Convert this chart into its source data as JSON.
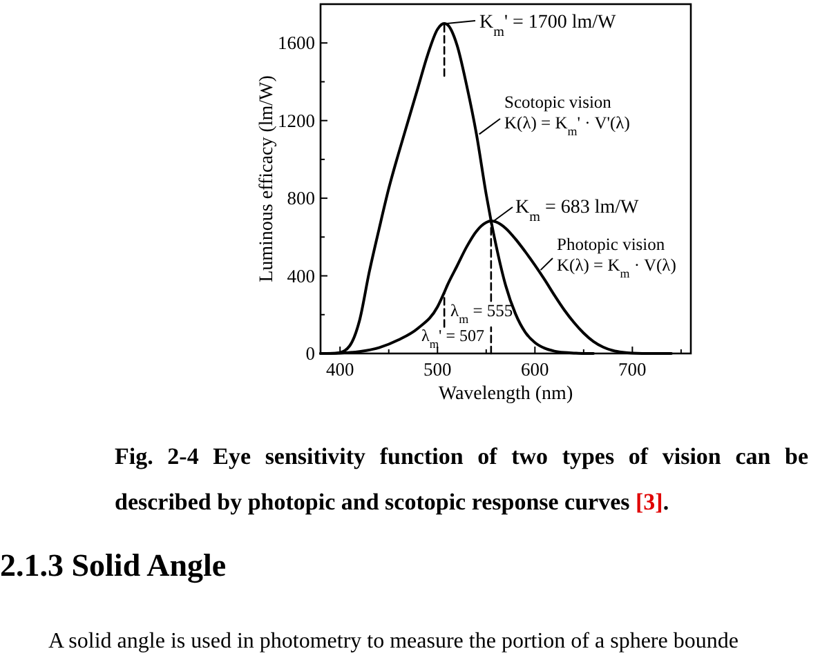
{
  "chart_data": {
    "type": "line",
    "xlabel": "Wavelength (nm)",
    "ylabel": "Luminous efficacy (lm/W)",
    "xlim": [
      380,
      760
    ],
    "xticks": [
      400,
      {
        "value": 450,
        "label": null
      },
      500,
      {
        "value": 550,
        "label": null
      },
      600,
      {
        "value": 650,
        "label": null
      },
      700,
      {
        "value": 750,
        "label": null
      }
    ],
    "ylim": [
      0,
      1800
    ],
    "yticks": [
      0,
      {
        "value": 200,
        "label": null
      },
      400,
      {
        "value": 600,
        "label": null
      },
      800,
      {
        "value": 1000,
        "label": null
      },
      1200,
      {
        "value": 1400,
        "label": null
      },
      1600
    ],
    "series": [
      {
        "name": "Scotopic vision",
        "color": "#000000",
        "x": [
          380,
          390,
          400,
          410,
          420,
          430,
          440,
          450,
          460,
          470,
          480,
          490,
          500,
          507,
          510,
          520,
          530,
          540,
          550,
          555,
          560,
          570,
          580,
          590,
          600,
          610,
          620,
          630,
          640,
          650,
          660
        ],
        "values": [
          0,
          0,
          5,
          40,
          170,
          420,
          640,
          850,
          1030,
          1200,
          1370,
          1540,
          1670,
          1700,
          1695,
          1590,
          1380,
          1130,
          820,
          683,
          560,
          350,
          205,
          110,
          56,
          27,
          12,
          5,
          2,
          0,
          0
        ]
      },
      {
        "name": "Photopic vision",
        "color": "#000000",
        "x": [
          380,
          400,
          420,
          440,
          460,
          480,
          500,
          507,
          510,
          520,
          530,
          540,
          550,
          555,
          560,
          570,
          580,
          590,
          600,
          610,
          620,
          630,
          640,
          650,
          660,
          670,
          680,
          690,
          700,
          720,
          740
        ],
        "values": [
          0,
          2,
          10,
          30,
          70,
          130,
          240,
          315,
          350,
          450,
          550,
          630,
          675,
          683,
          678,
          645,
          590,
          525,
          455,
          380,
          300,
          225,
          160,
          105,
          62,
          33,
          15,
          6,
          2,
          0,
          0
        ]
      },
      {
        "color": "#000000",
        "line_style": "dashed",
        "x": [
          555,
          555
        ],
        "values": [
          270,
          683
        ]
      },
      {
        "color": "#000000",
        "line_style": "dashed",
        "x": [
          555,
          555
        ],
        "values": [
          0,
          135
        ]
      },
      {
        "color": "#000000",
        "line_style": "dashed",
        "x": [
          507,
          507
        ],
        "values": [
          137,
          315
        ]
      },
      {
        "color": "#000000",
        "line_style": "dashed",
        "x": [
          507,
          507
        ],
        "values": [
          1430,
          1700
        ]
      }
    ],
    "annotations": [
      {
        "text": "K$_{m}$' = 1700 lm/W",
        "x": 507,
        "y": 1700
      },
      {
        "text": "K(λ) = K$_{m}$' · V'(λ)",
        "x": 540,
        "y": 1130
      },
      {
        "text": "K$_{m}$ = 683 lm/W",
        "x": 555,
        "y": 683
      },
      {
        "text": "K(λ) = K$_{m}$ · V(λ)",
        "x": 603,
        "y": 430
      },
      "λ$_{m}$ = 555",
      "λ$_{m}$' = 507",
      "Fig. 2-4 Eye sensitivity function of two types of vision can be described by photopic and scotopic response curves [3].",
      "2.1.3 Solid Angle",
      "A solid angle is used in photometry to measure the portion of a sphere bounde"
    ]
  }
}
